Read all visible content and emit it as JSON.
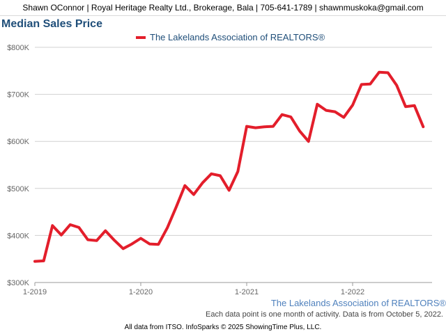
{
  "header": {
    "contact": "Shawn OConnor | Royal Heritage Realty Ltd., Brokerage, Bala | 705-641-1789 | shawnmuskoka@gmail.com"
  },
  "colors": {
    "title": "#1f4e79",
    "series": "#e31e2b",
    "grid": "#d0d0d0",
    "axis_text": "#666666",
    "source": "#4f81bd"
  },
  "footer": {
    "source": "The Lakelands Association of REALTORS®",
    "note": "Each data point is one month of activity. Data is from October 5, 2022.",
    "credit": "All data from ITSO. InfoSparks © 2025 ShowingTime Plus, LLC."
  },
  "chart_data": {
    "type": "line",
    "title": "Median Sales Price",
    "xlabel": "",
    "ylabel": "",
    "ylim": [
      300000,
      800000
    ],
    "y_ticks": [
      300000,
      400000,
      500000,
      600000,
      700000,
      800000
    ],
    "y_tick_labels": [
      "$300K",
      "$400K",
      "$500K",
      "$600K",
      "$700K",
      "$800K"
    ],
    "x_ticks": [
      "2019-01",
      "2020-01",
      "2021-01",
      "2022-01"
    ],
    "x_tick_labels": [
      "1-2019",
      "1-2020",
      "1-2021",
      "1-2022"
    ],
    "x_range": [
      "2019-01",
      "2022-10"
    ],
    "grid": true,
    "legend": "top-center",
    "series": [
      {
        "name": "The Lakelands Association of REALTORS®",
        "x": [
          "2019-01",
          "2019-02",
          "2019-03",
          "2019-04",
          "2019-05",
          "2019-06",
          "2019-07",
          "2019-08",
          "2019-09",
          "2019-10",
          "2019-11",
          "2019-12",
          "2020-01",
          "2020-02",
          "2020-03",
          "2020-04",
          "2020-05",
          "2020-06",
          "2020-07",
          "2020-08",
          "2020-09",
          "2020-10",
          "2020-11",
          "2020-12",
          "2021-01",
          "2021-02",
          "2021-03",
          "2021-04",
          "2021-05",
          "2021-06",
          "2021-07",
          "2021-08",
          "2021-09",
          "2021-10",
          "2021-11",
          "2021-12",
          "2022-01",
          "2022-02",
          "2022-03",
          "2022-04",
          "2022-05",
          "2022-06",
          "2022-07",
          "2022-08",
          "2022-09"
        ],
        "values": [
          345000,
          346000,
          421000,
          401000,
          423000,
          417000,
          391000,
          389000,
          410000,
          390000,
          372000,
          382000,
          394000,
          382000,
          381000,
          416000,
          460000,
          506000,
          487000,
          512000,
          531000,
          527000,
          496000,
          536000,
          632000,
          629000,
          631000,
          632000,
          657000,
          652000,
          622000,
          600000,
          679000,
          666000,
          663000,
          651000,
          677000,
          721000,
          722000,
          747000,
          746000,
          719000,
          674000,
          676000,
          631000
        ]
      }
    ]
  }
}
